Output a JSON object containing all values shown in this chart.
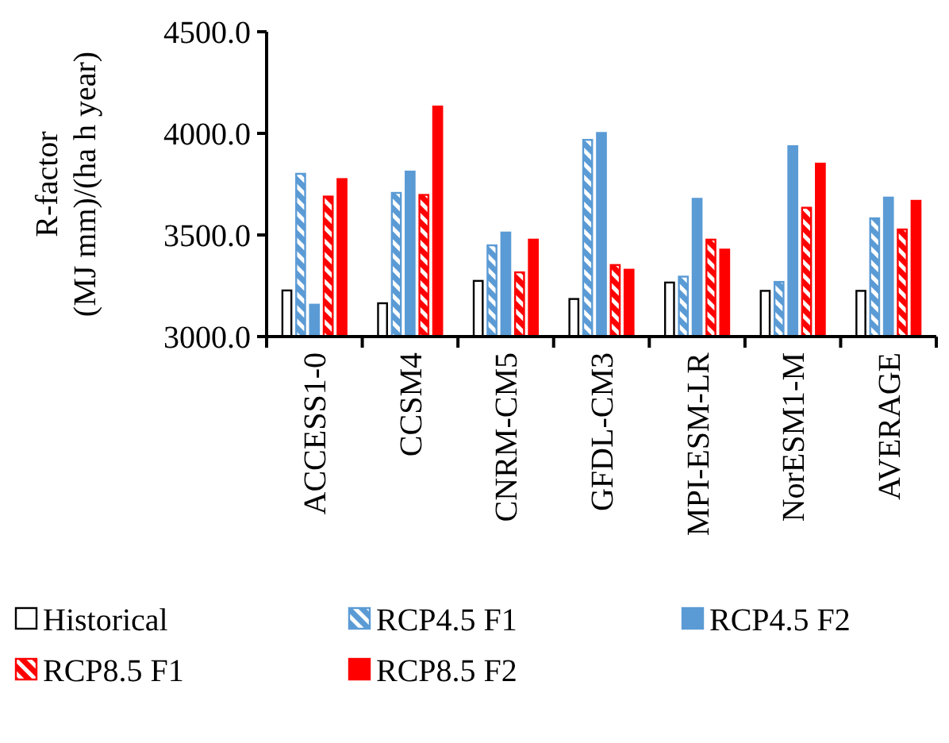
{
  "chart_data": {
    "type": "bar",
    "ylabel": "R-factor\n(MJ mm)/(ha h year)",
    "categories": [
      "ACCESS1-0",
      "CCSM4",
      "CNRM-CM5",
      "GFDL-CM3",
      "MPI-ESM-LR",
      "NorESM1-M",
      "AVERAGE"
    ],
    "series": [
      {
        "name": "Historical",
        "color": "#ffffff",
        "values": [
          3227,
          3164,
          3274,
          3185,
          3266,
          3225,
          3225
        ]
      },
      {
        "name": "RCP4.5 F1",
        "color": "#5b9bd5",
        "values": [
          3801,
          3707,
          3449,
          3968,
          3295,
          3269,
          3582
        ]
      },
      {
        "name": "RCP4.5 F2",
        "color": "#5b9bd5",
        "values": [
          3157,
          3812,
          3512,
          4002,
          3678,
          3937,
          3684
        ]
      },
      {
        "name": "RCP8.5 F1",
        "color": "#ff0000",
        "values": [
          3689,
          3697,
          3316,
          3352,
          3477,
          3634,
          3527
        ]
      },
      {
        "name": "RCP8.5 F2",
        "color": "#ff0000",
        "values": [
          3775,
          4132,
          3477,
          3329,
          3428,
          3851,
          3668
        ]
      }
    ],
    "ylim": [
      3000,
      4500
    ],
    "yticks": [
      {
        "value": 3000,
        "label": "3000.0"
      },
      {
        "value": 3500,
        "label": "3500.0"
      },
      {
        "value": 4000,
        "label": "4000.0"
      },
      {
        "value": 4500,
        "label": "4500.0"
      }
    ],
    "grid": false,
    "legend": "bottom"
  }
}
